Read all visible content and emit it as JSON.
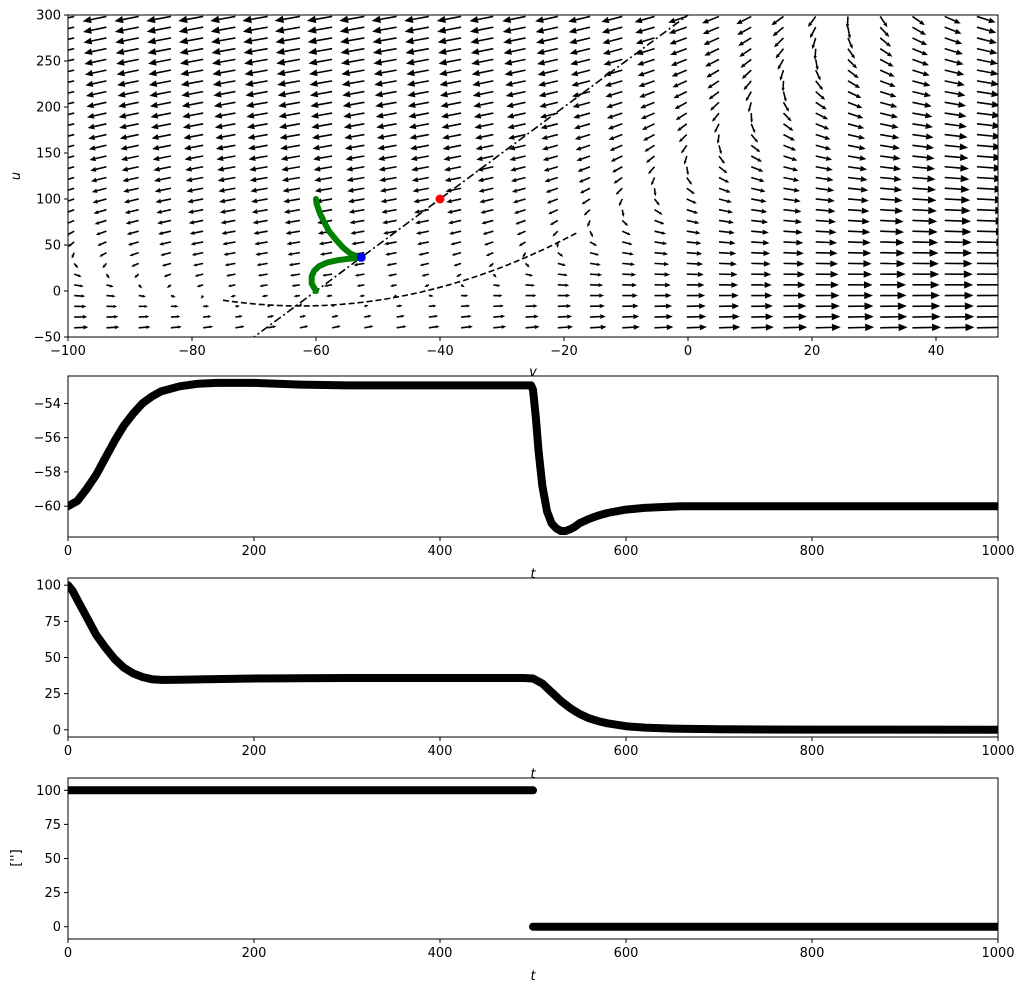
{
  "chart_data": [
    {
      "type": "vector-field",
      "xlabel": "v",
      "ylabel": "u",
      "xlim": [
        -100,
        50
      ],
      "ylim": [
        -50,
        300
      ],
      "xticks": [
        -100,
        -80,
        -60,
        -40,
        -20,
        0,
        20,
        40
      ],
      "yticks": [
        -50,
        0,
        50,
        100,
        150,
        200,
        250,
        300
      ],
      "quiver": {
        "x_start": -99,
        "x_step": 5.2,
        "x_count": 29,
        "y_start": -40,
        "y_step": 11.67,
        "y_count": 30
      },
      "v_nullcline": "u = 0.04 v^2 + 5 v + 140",
      "u_nullcline": "u = 5 v + 300",
      "trajectory_color": "#008000",
      "trajectories": [
        {
          "points": [
            [
              -60.0,
              100.0
            ],
            [
              -59.9,
              95.0
            ],
            [
              -59.4,
              85.0
            ],
            [
              -58.7,
              75.0
            ],
            [
              -57.9,
              65.0
            ],
            [
              -56.7,
              55.0
            ],
            [
              -55.6,
              47.0
            ],
            [
              -54.5,
              41.0
            ],
            [
              -53.5,
              37.5
            ],
            [
              -53.0,
              36.0
            ]
          ]
        },
        {
          "points": [
            [
              -60.0,
              0.0
            ],
            [
              -60.7,
              8.0
            ],
            [
              -60.7,
              16.0
            ],
            [
              -60.3,
              22.0
            ],
            [
              -59.5,
              27.0
            ],
            [
              -58.2,
              31.0
            ],
            [
              -56.5,
              33.5
            ],
            [
              -54.8,
              35.0
            ],
            [
              -53.0,
              36.0
            ]
          ]
        }
      ],
      "fixed_points": [
        {
          "v": -52.7,
          "u": 36.5,
          "color": "#0000ff"
        },
        {
          "v": -40.0,
          "u": 100.0,
          "color": "#ff0000"
        }
      ]
    },
    {
      "type": "line",
      "xlabel": "t",
      "ylabel": "",
      "xlim": [
        0,
        1000
      ],
      "ylim": [
        -61.8,
        -52.4
      ],
      "xticks": [
        0,
        200,
        400,
        600,
        800,
        1000
      ],
      "yticks": [
        -60,
        -58,
        -56,
        -54
      ],
      "series": [
        {
          "x": [
            0,
            10,
            20,
            30,
            40,
            50,
            60,
            70,
            80,
            90,
            100,
            120,
            140,
            160,
            180,
            200,
            250,
            300,
            400,
            498,
            500,
            503,
            506,
            510,
            515,
            520,
            525,
            530,
            535,
            540,
            545,
            550,
            560,
            570,
            580,
            600,
            620,
            640,
            660,
            700,
            800,
            1000
          ],
          "y": [
            -60.0,
            -59.7,
            -59.0,
            -58.2,
            -57.2,
            -56.2,
            -55.3,
            -54.6,
            -54.0,
            -53.6,
            -53.3,
            -53.0,
            -52.85,
            -52.8,
            -52.8,
            -52.8,
            -52.9,
            -52.95,
            -52.95,
            -52.95,
            -53.2,
            -54.8,
            -56.8,
            -58.8,
            -60.3,
            -61.0,
            -61.3,
            -61.45,
            -61.45,
            -61.35,
            -61.2,
            -61.0,
            -60.75,
            -60.55,
            -60.4,
            -60.2,
            -60.1,
            -60.05,
            -60.0,
            -60.0,
            -60.0,
            -60.0
          ]
        }
      ]
    },
    {
      "type": "line",
      "xlabel": "t",
      "ylabel": "",
      "xlim": [
        0,
        1000
      ],
      "ylim": [
        -5,
        105
      ],
      "xticks": [
        0,
        200,
        400,
        600,
        800,
        1000
      ],
      "yticks": [
        0,
        25,
        50,
        75,
        100
      ],
      "series": [
        {
          "x": [
            0,
            5,
            10,
            20,
            30,
            40,
            50,
            60,
            70,
            80,
            90,
            100,
            110,
            120,
            150,
            200,
            300,
            400,
            490,
            500,
            510,
            520,
            530,
            540,
            550,
            560,
            570,
            580,
            600,
            620,
            650,
            700,
            800,
            1000
          ],
          "y": [
            100,
            96,
            90,
            78,
            66,
            57,
            49,
            43,
            39,
            36.5,
            35,
            34.5,
            34.5,
            34.6,
            35,
            35.5,
            35.8,
            35.8,
            35.8,
            35.5,
            32,
            26,
            20,
            15,
            11,
            8,
            6,
            4.5,
            2.5,
            1.5,
            0.8,
            0.3,
            0.1,
            0
          ]
        }
      ]
    },
    {
      "type": "line",
      "xlabel": "t",
      "ylabel": "['']",
      "xlim": [
        0,
        1000
      ],
      "ylim": [
        -9,
        109
      ],
      "xticks": [
        0,
        200,
        400,
        600,
        800,
        1000
      ],
      "yticks": [
        0,
        25,
        50,
        75,
        100
      ],
      "series": [
        {
          "segments": [
            {
              "x": [
                0,
                500
              ],
              "y": [
                100,
                100
              ]
            },
            {
              "x": [
                500,
                1000
              ],
              "y": [
                0,
                0
              ]
            }
          ]
        }
      ]
    }
  ]
}
